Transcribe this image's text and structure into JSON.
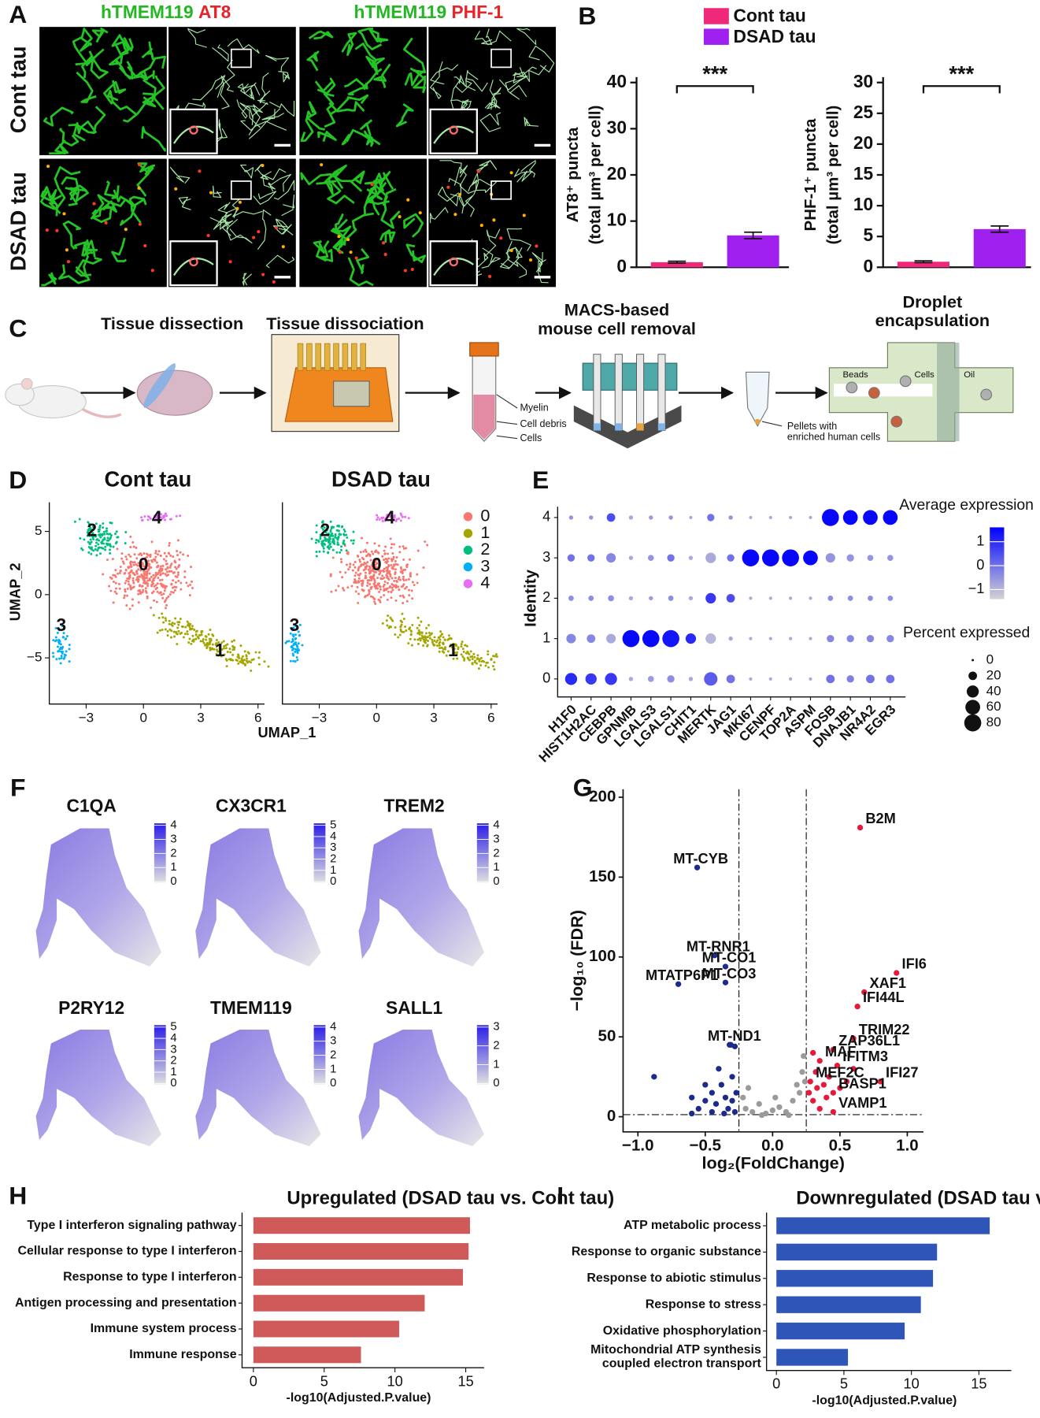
{
  "panel_labels": [
    "A",
    "B",
    "C",
    "D",
    "E",
    "F",
    "G",
    "H",
    "I"
  ],
  "panel_a": {
    "columns": [
      {
        "marker": "hTMEM119",
        "stain": "AT8"
      },
      {
        "marker": "hTMEM119",
        "stain": "PHF-1"
      }
    ],
    "rows": [
      "Cont tau",
      "DSAD tau"
    ]
  },
  "panel_c": {
    "steps": [
      "Tissue dissection",
      "Tissue dissociation",
      "MACS-based\nmouse cell removal",
      "Droplet\nencapsulation"
    ],
    "tube_labels": [
      "Myelin",
      "Cell debris",
      "Cells"
    ],
    "pellet_label": "Pellets with\nenriched human cells",
    "chip_labels": [
      "Beads",
      "Cells",
      "Oil"
    ]
  },
  "panel_d": {
    "titles": [
      "Cont tau",
      "DSAD tau"
    ],
    "x_label": "UMAP_1",
    "y_label": "UMAP_2",
    "xticks": [
      {
        "value": -3,
        "label": "−3"
      },
      0,
      3,
      6
    ],
    "yticks": [
      5,
      0,
      {
        "value": -5,
        "label": "−5"
      }
    ],
    "clusters": [
      {
        "label": "0",
        "color": "#F8766D"
      },
      {
        "label": "1",
        "color": "#A3A500"
      },
      {
        "label": "2",
        "color": "#00BF7D"
      },
      {
        "label": "3",
        "color": "#00B0F6"
      },
      {
        "label": "4",
        "color": "#E76BF3"
      }
    ]
  },
  "panel_f": {
    "genes": [
      {
        "name": "C1QA",
        "scale": [
          0,
          1,
          2,
          3,
          4
        ]
      },
      {
        "name": "CX3CR1",
        "scale": [
          0,
          1,
          2,
          3,
          4,
          5
        ]
      },
      {
        "name": "TREM2",
        "scale": [
          0,
          1,
          2,
          3,
          4
        ]
      },
      {
        "name": "P2RY12",
        "scale": [
          0,
          1,
          2,
          3,
          4,
          5
        ]
      },
      {
        "name": "TMEM119",
        "scale": [
          0,
          1,
          2,
          3,
          4
        ]
      },
      {
        "name": "SALL1",
        "scale": [
          0,
          1,
          2,
          3
        ]
      }
    ]
  },
  "chart_data": [
    {
      "type": "bar",
      "categories": [
        "Cont tau",
        "DSAD tau"
      ],
      "colors": [
        "#f0287a",
        "#a020f0"
      ],
      "values": [
        1.1,
        6.9
      ],
      "errors": [
        0.2,
        0.7
      ],
      "y_label": [
        "AT8⁺ puncta",
        "(total µm³ per cell)"
      ],
      "ylim": [
        0,
        40
      ],
      "yticks": [
        0,
        10,
        20,
        30,
        40
      ],
      "annotation": "***"
    },
    {
      "type": "bar",
      "colors": [
        "#f0287a",
        "#a020f0"
      ],
      "values": [
        0.9,
        6.2
      ],
      "errors": [
        0.15,
        0.5
      ],
      "y_label": [
        "PHF-1⁺ puncta",
        "(total µm³ per cell)"
      ],
      "ylim": [
        0,
        30
      ],
      "yticks": [
        0,
        5,
        10,
        15,
        20,
        25,
        30
      ],
      "annotation": "***"
    },
    {
      "type": "dot",
      "categories": [
        "H1F0",
        "HIST1H2AC",
        "CEBPB",
        "GPNMB",
        "LGALS3",
        "LGALS1",
        "CHIT1",
        "MERTK",
        "JAG1",
        "MKI67",
        "CENPF",
        "TOP2A",
        "ASPM",
        "FOSB",
        "DNAJB1",
        "NR4A2",
        "EGR3"
      ],
      "y_label": "Identity",
      "series": [
        {
          "name": "0",
          "percent": [
            40,
            35,
            40,
            5,
            10,
            15,
            5,
            50,
            20,
            3,
            3,
            3,
            3,
            20,
            15,
            20,
            20
          ],
          "expression": [
            1,
            0.8,
            0.8,
            -0.8,
            -0.6,
            -0.4,
            -0.8,
            0.3,
            0,
            -0.8,
            -0.8,
            -0.8,
            -0.8,
            0,
            -0.2,
            0,
            0
          ]
        },
        {
          "name": "1",
          "percent": [
            25,
            20,
            25,
            80,
            80,
            80,
            30,
            30,
            5,
            3,
            3,
            3,
            3,
            15,
            15,
            15,
            15
          ],
          "expression": [
            -0.3,
            -0.3,
            -0.8,
            1.5,
            1.5,
            1.3,
            1,
            -1,
            -0.8,
            -0.8,
            -0.8,
            -0.8,
            -0.8,
            -0.3,
            -0.3,
            -0.3,
            -0.3
          ]
        },
        {
          "name": "2",
          "percent": [
            8,
            8,
            10,
            5,
            5,
            8,
            5,
            30,
            20,
            3,
            3,
            3,
            3,
            8,
            8,
            8,
            8
          ],
          "expression": [
            -0.4,
            -0.4,
            -0.4,
            -0.8,
            -0.6,
            -0.4,
            -0.8,
            0.8,
            0.5,
            -0.8,
            -0.8,
            -0.8,
            -0.8,
            -0.4,
            -0.4,
            -0.4,
            -0.4
          ]
        },
        {
          "name": "3",
          "percent": [
            15,
            15,
            25,
            5,
            10,
            15,
            5,
            30,
            15,
            80,
            80,
            80,
            60,
            25,
            15,
            10,
            10
          ],
          "expression": [
            0,
            0,
            -0.3,
            -0.8,
            -0.5,
            0,
            -0.8,
            -0.8,
            0,
            1.5,
            1.5,
            1.5,
            1.5,
            -0.5,
            -0.5,
            -0.5,
            -0.5
          ]
        },
        {
          "name": "4",
          "percent": [
            5,
            5,
            20,
            5,
            5,
            5,
            3,
            15,
            5,
            3,
            3,
            3,
            3,
            80,
            60,
            60,
            60
          ],
          "expression": [
            -0.5,
            -0.5,
            0.5,
            -0.8,
            -0.6,
            -0.5,
            -0.8,
            0,
            -0.5,
            -0.8,
            -0.8,
            -0.8,
            -0.8,
            1.5,
            1.5,
            1.5,
            1.5
          ]
        }
      ],
      "clim": [
        -1.4,
        1.6
      ],
      "colors": [
        "#d3d3d3",
        "#0000ff"
      ],
      "color_legend": {
        "title": "Average expression",
        "ticks": [
          1,
          0,
          {
            "value": -1,
            "label": "−1"
          }
        ]
      },
      "size_legend": {
        "title": "Percent expressed",
        "values": [
          0,
          20,
          40,
          60,
          80
        ]
      }
    },
    {
      "type": "scatter",
      "x_label": "log₂(FoldChange)",
      "y_label": "−log₁₀ (FDR)",
      "xlim": [
        -1.11,
        1.12
      ],
      "ylim": [
        -9.5,
        205
      ],
      "xticks": [
        {
          "value": -1,
          "label": "−1.0"
        },
        {
          "value": -0.5,
          "label": "−0.5"
        },
        {
          "value": 0,
          "label": "0.0"
        },
        {
          "value": 0.5,
          "label": "0.5"
        },
        {
          "value": 1,
          "label": "1.0"
        }
      ],
      "yticks": [
        0,
        50,
        100,
        150,
        200
      ],
      "thresholds": {
        "x": [
          -0.25,
          0.25
        ],
        "y": 1.3
      },
      "series": [
        {
          "color": "#1c2a8c",
          "x": [
            -0.56,
            -0.43,
            -0.35,
            -0.35,
            -0.7,
            -0.31,
            -0.88,
            -0.6,
            -0.55,
            -0.5,
            -0.45,
            -0.42,
            -0.38,
            -0.35,
            -0.33,
            -0.3,
            -0.3,
            -0.28,
            -0.27,
            -0.4,
            -0.32,
            -0.28,
            -0.45,
            -0.36,
            -0.6,
            -0.5
          ],
          "y": [
            156,
            101,
            94,
            84,
            83,
            45,
            25,
            2,
            5,
            10,
            15,
            8,
            20,
            12,
            5,
            25,
            10,
            3,
            15,
            30,
            45,
            44,
            3,
            2,
            12,
            20
          ],
          "labels": [
            "MT-CYB",
            "MT-RNR1",
            "MT-CO1",
            "MT-CO3",
            "MTATP6P1",
            "MT-ND1",
            null,
            null,
            null,
            null,
            null,
            null,
            null,
            null,
            null,
            null,
            null,
            null,
            null,
            null,
            null,
            null,
            null,
            null,
            null,
            null
          ]
        },
        {
          "color": "#e8173c",
          "x": [
            0.65,
            0.92,
            0.68,
            0.63,
            0.6,
            0.45,
            0.35,
            0.48,
            0.8,
            0.28,
            0.45,
            0.45,
            0.3,
            0.32,
            0.38,
            0.4,
            0.42,
            0.35,
            0.5,
            0.55,
            0.3,
            0.27,
            0.33,
            0.6
          ],
          "y": [
            181,
            90,
            78,
            69,
            49,
            42,
            35,
            32,
            22,
            22,
            15,
            3,
            10,
            28,
            20,
            12,
            25,
            5,
            18,
            22,
            40,
            15,
            18,
            30
          ],
          "labels": [
            "B2M",
            "IFI6",
            "XAF1",
            "IFI44L",
            "TRIM22",
            "ZAP36L1",
            "MAF",
            "IFITM3",
            "IFI27",
            "MEF2C",
            "BASP1",
            "VAMP1",
            null,
            null,
            null,
            null,
            null,
            null,
            null,
            null,
            null,
            null,
            null,
            null
          ]
        },
        {
          "color": "#9a9a9a",
          "x": [
            -0.2,
            -0.15,
            -0.1,
            -0.05,
            0,
            0.05,
            0.1,
            0.15,
            0.2,
            0.22,
            0.18,
            -0.22,
            -0.18,
            0.12,
            -0.08,
            0.02,
            0.23,
            0.24
          ],
          "y": [
            5,
            3,
            8,
            2,
            4,
            6,
            3,
            10,
            15,
            28,
            20,
            12,
            18,
            1,
            1,
            12,
            38,
            22
          ],
          "labels": [
            null,
            null,
            null,
            null,
            null,
            null,
            null,
            null,
            null,
            null,
            null,
            null,
            null,
            null,
            null,
            null,
            null,
            null
          ]
        }
      ]
    },
    {
      "type": "hbar",
      "title": "Upregulated (DSAD tau vs. Cont tau)",
      "categories": [
        "Type I interferon signaling pathway",
        "Cellular response to type I interferon",
        "Response to type I interferon",
        "Antigen processing and presentation",
        "Immune system process",
        "Immune response"
      ],
      "values": [
        15.3,
        15.2,
        14.8,
        12.1,
        10.3,
        7.6
      ],
      "color": "#d05a5a",
      "x_label": "-log10(Adjusted.P.value)",
      "xlim": [
        -0.8,
        16.3
      ],
      "xticks": [
        0,
        5,
        10,
        15
      ]
    },
    {
      "type": "hbar",
      "title": "Downregulated (DSAD tau vs. Cont tau)",
      "categories": [
        "ATP metabolic process",
        "Response to organic substance",
        "Response to abiotic stimulus",
        "Response to stress",
        "Oxidative phosphorylation",
        "Mitochondrial ATP synthesis\ncoupled electron transport"
      ],
      "values": [
        15.8,
        11.9,
        11.6,
        10.7,
        9.5,
        5.3
      ],
      "color": "#2f55b8",
      "x_label": "-log10(Adjusted.P.value)",
      "xlim": [
        -0.73,
        17.4
      ],
      "xticks": [
        0,
        5,
        10,
        15
      ]
    }
  ]
}
